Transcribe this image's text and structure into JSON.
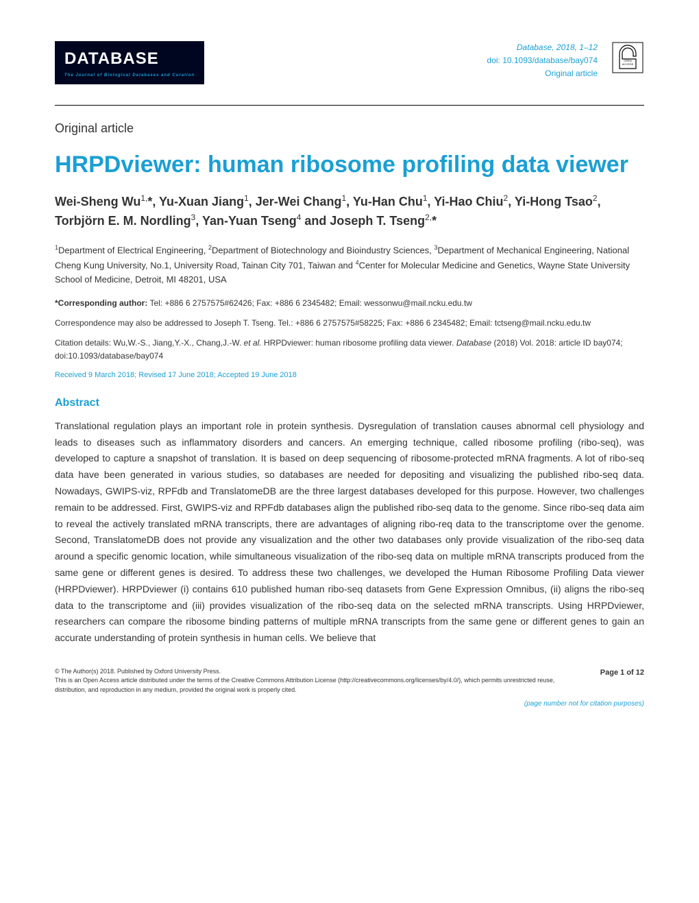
{
  "header": {
    "logo_text": "DATABASE",
    "logo_subtitle": "The Journal of Biological Databases and Curation",
    "journal_ref": "Database, 2018, 1–12",
    "doi": "doi: 10.1093/database/bay074",
    "article_category": "Original article",
    "colors": {
      "logo_bg": "#000620",
      "logo_text": "#ffffff",
      "accent": "#1a9fd4"
    }
  },
  "article": {
    "type_label": "Original article",
    "title": "HRPDviewer: human ribosome profiling data viewer",
    "authors_html": "Wei-Sheng Wu<sup>1,</sup>*, Yu-Xuan Jiang<sup>1</sup>, Jer-Wei Chang<sup>1</sup>, Yu-Han Chu<sup>1</sup>, Yi-Hao Chiu<sup>2</sup>, Yi-Hong Tsao<sup>2</sup>, Torbjörn E. M. Nordling<sup>3</sup>, Yan-Yuan Tseng<sup>4</sup> and Joseph T. Tseng<sup>2,</sup>*",
    "affiliations_html": "<sup>1</sup>Department of Electrical Engineering, <sup>2</sup>Department of Biotechnology and Bioindustry Sciences, <sup>3</sup>Department of Mechanical Engineering, National Cheng Kung University, No.1, University Road, Tainan City 701, Taiwan and <sup>4</sup>Center for Molecular Medicine and Genetics, Wayne State University School of Medicine, Detroit, MI 48201, USA",
    "corresponding_1": "*Corresponding author: Tel: +886 6 2757575#62426; Fax: +886 6 2345482; Email: wessonwu@mail.ncku.edu.tw",
    "corresponding_2": "Correspondence may also be addressed to Joseph T. Tseng. Tel.: +886 6 2757575#58225; Fax: +886 6 2345482; Email: tctseng@mail.ncku.edu.tw",
    "citation_html": "Citation details: Wu,W.-S., Jiang,Y.-X., Chang,J.-W. <em>et al.</em> HRPDviewer: human ribosome profiling data viewer. <em>Database</em> (2018) Vol. 2018: article ID bay074; doi:10.1093/database/bay074",
    "dates": "Received 9 March 2018; Revised 17 June 2018; Accepted 19 June 2018",
    "abstract_heading": "Abstract",
    "abstract_text": "Translational regulation plays an important role in protein synthesis. Dysregulation of translation causes abnormal cell physiology and leads to diseases such as inflammatory disorders and cancers. An emerging technique, called ribosome profiling (ribo-seq), was developed to capture a snapshot of translation. It is based on deep sequencing of ribosome-protected mRNA fragments. A lot of ribo-seq data have been generated in various studies, so databases are needed for depositing and visualizing the published ribo-seq data. Nowadays, GWIPS-viz, RPFdb and TranslatomeDB are the three largest databases developed for this purpose. However, two challenges remain to be addressed. First, GWIPS-viz and RPFdb databases align the published ribo-seq data to the genome. Since ribo-seq data aim to reveal the actively translated mRNA transcripts, there are advantages of aligning ribo-req data to the transcriptome over the genome. Second, TranslatomeDB does not provide any visualization and the other two databases only provide visualization of the ribo-seq data around a specific genomic location, while simultaneous visualization of the ribo-seq data on multiple mRNA transcripts produced from the same gene or different genes is desired. To address these two challenges, we developed the Human Ribosome Profiling Data viewer (HRPDviewer). HRPDviewer (i) contains 610 published human ribo-seq datasets from Gene Expression Omnibus, (ii) aligns the ribo-seq data to the transcriptome and (iii) provides visualization of the ribo-seq data on the selected mRNA transcripts. Using HRPDviewer, researchers can compare the ribosome binding patterns of multiple mRNA transcripts from the same gene or different genes to gain an accurate understanding of protein synthesis in human cells. We believe that"
  },
  "footer": {
    "copyright": "© The Author(s) 2018. Published by Oxford University Press.",
    "license": "This is an Open Access article distributed under the terms of the Creative Commons Attribution License (http://creativecommons.org/licenses/by/4.0/), which permits unrestricted reuse, distribution, and reproduction in any medium, provided the original work is properly cited.",
    "page_label": "Page 1 of 12",
    "citation_note": "(page number not for citation purposes)"
  }
}
